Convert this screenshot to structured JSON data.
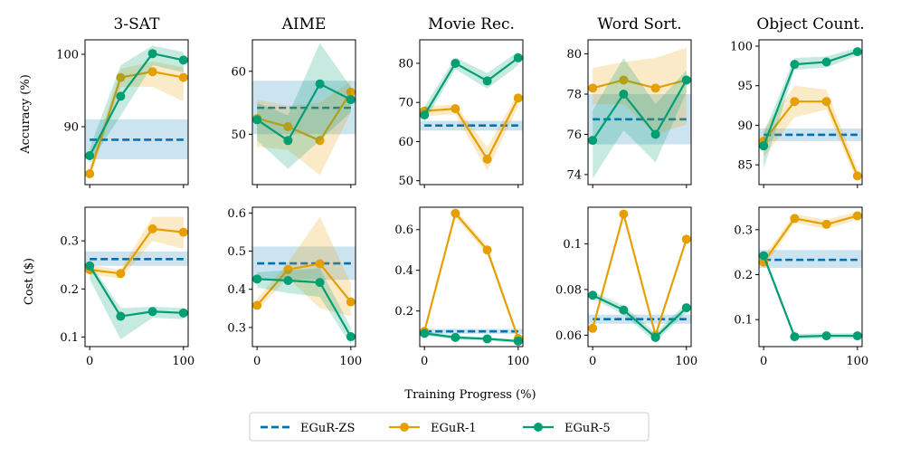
{
  "figure": {
    "x_label": "Training Progress (%)",
    "y_labels": [
      "Accuracy (%)",
      "Cost ($)"
    ]
  },
  "colors": {
    "zs": "#0072b2",
    "one": "#e69f00",
    "five": "#009e73"
  },
  "legend": [
    "EGuR-ZS",
    "EGuR-1",
    "EGuR-5"
  ],
  "chart_data": [
    {
      "type": "line",
      "panel": "3-SAT accuracy",
      "title": "3-SAT",
      "ylabel": "Accuracy (%)",
      "xlim": [
        -5,
        105
      ],
      "ylim": [
        82,
        102
      ],
      "xticks": [
        0,
        100
      ],
      "yticks": [
        90,
        100
      ],
      "baseline": {
        "name": "EGuR-ZS",
        "value": 88.2,
        "band": [
          85.5,
          91
        ]
      },
      "series": [
        {
          "name": "EGuR-1",
          "x": [
            0,
            33,
            67,
            100
          ],
          "y": [
            83.5,
            96.8,
            97.6,
            96.8
          ],
          "lo": [
            82.8,
            95.5,
            95.5,
            93.5
          ],
          "hi": [
            84.5,
            98,
            99,
            98.2
          ]
        },
        {
          "name": "EGuR-5",
          "x": [
            0,
            33,
            67,
            100
          ],
          "y": [
            86,
            94.2,
            100.1,
            99.2
          ],
          "lo": [
            85,
            91.5,
            98.5,
            97.5
          ],
          "hi": [
            87,
            98.5,
            101.2,
            100.3
          ]
        }
      ]
    },
    {
      "type": "line",
      "panel": "AIME accuracy",
      "title": "AIME",
      "xlim": [
        -5,
        105
      ],
      "ylim": [
        42,
        65
      ],
      "xticks": [
        0,
        100
      ],
      "yticks": [
        50,
        60
      ],
      "baseline": {
        "name": "EGuR-ZS",
        "value": 54.2,
        "band": [
          50,
          58.5
        ]
      },
      "series": [
        {
          "name": "EGuR-1",
          "x": [
            0,
            33,
            67,
            100
          ],
          "y": [
            52.5,
            51.2,
            49,
            56.7
          ],
          "lo": [
            48,
            47.5,
            43.5,
            53.5
          ],
          "hi": [
            55.5,
            54.5,
            55,
            58.5
          ]
        },
        {
          "name": "EGuR-5",
          "x": [
            0,
            33,
            67,
            100
          ],
          "y": [
            52.3,
            49,
            58,
            55.5
          ],
          "lo": [
            49,
            44.5,
            49,
            53.5
          ],
          "hi": [
            55,
            53,
            64.5,
            57.5
          ]
        }
      ]
    },
    {
      "type": "line",
      "panel": "Movie Rec. accuracy",
      "title": "Movie Rec.",
      "xlim": [
        -5,
        105
      ],
      "ylim": [
        49,
        86
      ],
      "xticks": [
        0,
        100
      ],
      "yticks": [
        50,
        60,
        70,
        80
      ],
      "baseline": {
        "name": "EGuR-ZS",
        "value": 64.1,
        "band": [
          62.8,
          65.3
        ]
      },
      "series": [
        {
          "name": "EGuR-1",
          "x": [
            0,
            33,
            67,
            100
          ],
          "y": [
            67.8,
            68.4,
            55.5,
            71.1
          ],
          "lo": [
            66.5,
            67,
            52.5,
            69
          ],
          "hi": [
            69,
            69.5,
            58.5,
            72.5
          ]
        },
        {
          "name": "EGuR-5",
          "x": [
            0,
            33,
            67,
            100
          ],
          "y": [
            66.8,
            80,
            75.5,
            81.4
          ],
          "lo": [
            65,
            78.5,
            73.5,
            79.5
          ],
          "hi": [
            69,
            81.5,
            77.5,
            83
          ]
        }
      ]
    },
    {
      "type": "line",
      "panel": "Word Sort. accuracy",
      "title": "Word Sort.",
      "xlim": [
        -5,
        105
      ],
      "ylim": [
        73.5,
        80.7
      ],
      "xticks": [
        0,
        100
      ],
      "yticks": [
        74,
        76,
        78,
        80
      ],
      "baseline": {
        "name": "EGuR-ZS",
        "value": 76.75,
        "band": [
          75.5,
          78
        ]
      },
      "series": [
        {
          "name": "EGuR-1",
          "x": [
            0,
            33,
            67,
            100
          ],
          "y": [
            78.3,
            78.7,
            78.3,
            78.7
          ],
          "lo": [
            77.5,
            77.5,
            76,
            76.5
          ],
          "hi": [
            79.3,
            79.6,
            79.8,
            80.3
          ]
        },
        {
          "name": "EGuR-5",
          "x": [
            0,
            33,
            67,
            100
          ],
          "y": [
            75.7,
            78,
            76,
            78.7
          ],
          "lo": [
            73.8,
            76.2,
            74.6,
            78.1
          ],
          "hi": [
            77.2,
            79.8,
            77.5,
            79.2
          ]
        }
      ]
    },
    {
      "type": "line",
      "panel": "Object Count. accuracy",
      "title": "Object Count.",
      "xlim": [
        -5,
        105
      ],
      "ylim": [
        82.5,
        100.8
      ],
      "xticks": [
        0,
        100
      ],
      "yticks": [
        85,
        90,
        95,
        100
      ],
      "baseline": {
        "name": "EGuR-ZS",
        "value": 88.8,
        "band": [
          88,
          89.6
        ]
      },
      "series": [
        {
          "name": "EGuR-1",
          "x": [
            0,
            33,
            67,
            100
          ],
          "y": [
            88,
            93,
            93,
            83.6
          ],
          "lo": [
            86,
            91,
            92,
            82.8
          ],
          "hi": [
            89.5,
            95,
            94.5,
            84.5
          ]
        },
        {
          "name": "EGuR-5",
          "x": [
            0,
            33,
            67,
            100
          ],
          "y": [
            87.4,
            97.7,
            98,
            99.3
          ],
          "lo": [
            84.5,
            97,
            97.3,
            98.8
          ],
          "hi": [
            89,
            98.5,
            98.7,
            99.8
          ]
        }
      ]
    },
    {
      "type": "line",
      "panel": "3-SAT cost",
      "ylabel": "Cost ($)",
      "xlim": [
        -5,
        105
      ],
      "ylim": [
        0.08,
        0.37
      ],
      "xticks": [
        0,
        100
      ],
      "yticks": [
        0.1,
        0.2,
        0.3
      ],
      "baseline": {
        "name": "EGuR-ZS",
        "value": 0.262,
        "band": [
          0.248,
          0.278
        ]
      },
      "series": [
        {
          "name": "EGuR-1",
          "x": [
            0,
            33,
            67,
            100
          ],
          "y": [
            0.24,
            0.232,
            0.325,
            0.318
          ],
          "lo": [
            0.23,
            0.222,
            0.3,
            0.283
          ],
          "hi": [
            0.25,
            0.24,
            0.35,
            0.35
          ]
        },
        {
          "name": "EGuR-5",
          "x": [
            0,
            33,
            67,
            100
          ],
          "y": [
            0.248,
            0.143,
            0.153,
            0.15
          ],
          "lo": [
            0.22,
            0.095,
            0.14,
            0.137
          ],
          "hi": [
            0.255,
            0.16,
            0.163,
            0.16
          ]
        }
      ]
    },
    {
      "type": "line",
      "panel": "AIME cost",
      "xlim": [
        -5,
        105
      ],
      "ylim": [
        0.25,
        0.615
      ],
      "xticks": [
        0,
        100
      ],
      "yticks": [
        0.3,
        0.4,
        0.5,
        0.6
      ],
      "baseline": {
        "name": "EGuR-ZS",
        "value": 0.468,
        "band": [
          0.425,
          0.512
        ]
      },
      "series": [
        {
          "name": "EGuR-1",
          "x": [
            0,
            33,
            67,
            100
          ],
          "y": [
            0.358,
            0.452,
            0.467,
            0.367
          ],
          "lo": [
            0.345,
            0.43,
            0.35,
            0.33
          ],
          "hi": [
            0.375,
            0.47,
            0.59,
            0.415
          ]
        },
        {
          "name": "EGuR-5",
          "x": [
            0,
            33,
            67,
            100
          ],
          "y": [
            0.427,
            0.423,
            0.418,
            0.276
          ],
          "lo": [
            0.405,
            0.39,
            0.38,
            0.255
          ],
          "hi": [
            0.445,
            0.45,
            0.455,
            0.3
          ]
        }
      ]
    },
    {
      "type": "line",
      "panel": "Movie Rec. cost",
      "xlim": [
        -5,
        105
      ],
      "ylim": [
        0.025,
        0.71
      ],
      "xticks": [
        0,
        100
      ],
      "yticks": [
        0.2,
        0.4,
        0.6
      ],
      "baseline": {
        "name": "EGuR-ZS",
        "value": 0.1,
        "band": [
          0.088,
          0.112
        ]
      },
      "series": [
        {
          "name": "EGuR-1",
          "x": [
            0,
            33,
            67,
            100
          ],
          "y": [
            0.1,
            0.68,
            0.5,
            0.065
          ],
          "lo": [
            0.09,
            0.66,
            0.48,
            0.055
          ],
          "hi": [
            0.11,
            0.7,
            0.52,
            0.075
          ]
        },
        {
          "name": "EGuR-5",
          "x": [
            0,
            33,
            67,
            100
          ],
          "y": [
            0.09,
            0.07,
            0.063,
            0.052
          ],
          "lo": [
            0.08,
            0.06,
            0.055,
            0.043
          ],
          "hi": [
            0.1,
            0.08,
            0.071,
            0.06
          ]
        }
      ]
    },
    {
      "type": "line",
      "panel": "Word Sort. cost",
      "xlim": [
        -5,
        105
      ],
      "ylim": [
        0.055,
        0.116
      ],
      "xticks": [
        0,
        100
      ],
      "yticks": [
        0.06,
        0.08,
        0.1
      ],
      "baseline": {
        "name": "EGuR-ZS",
        "value": 0.067,
        "band": [
          0.065,
          0.069
        ]
      },
      "series": [
        {
          "name": "EGuR-1",
          "x": [
            0,
            33,
            67,
            100
          ],
          "y": [
            0.063,
            0.113,
            0.06,
            0.102
          ],
          "lo": [
            0.062,
            0.112,
            0.059,
            0.101
          ],
          "hi": [
            0.064,
            0.114,
            0.061,
            0.103
          ]
        },
        {
          "name": "EGuR-5",
          "x": [
            0,
            33,
            67,
            100
          ],
          "y": [
            0.0775,
            0.071,
            0.059,
            0.072
          ],
          "lo": [
            0.076,
            0.069,
            0.057,
            0.07
          ],
          "hi": [
            0.079,
            0.073,
            0.061,
            0.074
          ]
        }
      ]
    },
    {
      "type": "line",
      "panel": "Object Count. cost",
      "xlim": [
        -5,
        105
      ],
      "ylim": [
        0.04,
        0.35
      ],
      "xticks": [
        0,
        100
      ],
      "yticks": [
        0.1,
        0.2,
        0.3
      ],
      "baseline": {
        "name": "EGuR-ZS",
        "value": 0.233,
        "band": [
          0.215,
          0.255
        ]
      },
      "series": [
        {
          "name": "EGuR-1",
          "x": [
            0,
            33,
            67,
            100
          ],
          "y": [
            0.228,
            0.325,
            0.312,
            0.331
          ],
          "lo": [
            0.215,
            0.315,
            0.302,
            0.322
          ],
          "hi": [
            0.24,
            0.335,
            0.322,
            0.34
          ]
        },
        {
          "name": "EGuR-5",
          "x": [
            0,
            33,
            67,
            100
          ],
          "y": [
            0.242,
            0.062,
            0.064,
            0.064
          ],
          "lo": [
            0.235,
            0.056,
            0.058,
            0.058
          ],
          "hi": [
            0.25,
            0.068,
            0.07,
            0.07
          ]
        }
      ]
    }
  ]
}
